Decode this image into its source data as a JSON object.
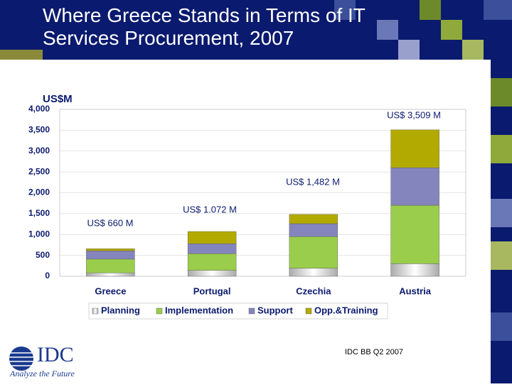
{
  "title": "Where Greece Stands in Terms of IT Services Procurement, 2007",
  "source": "IDC BB Q2 2007",
  "logo": {
    "name": "IDC",
    "tagline": "Analyze the Future"
  },
  "chart_data": {
    "type": "stacked_bar",
    "y_label": "US$M",
    "categories": [
      "Greece",
      "Portugal",
      "Czechia",
      "Austria"
    ],
    "series": [
      {
        "name": "Planning",
        "color": "#d8d8d8",
        "values": [
          80,
          140,
          190,
          300
        ]
      },
      {
        "name": "Implementation",
        "color": "#9acd4c",
        "values": [
          330,
          400,
          760,
          1400
        ]
      },
      {
        "name": "Support",
        "color": "#8585bd",
        "values": [
          200,
          240,
          310,
          900
        ]
      },
      {
        "name": "Opp.&Training",
        "color": "#b3aa00",
        "values": [
          50,
          292,
          222,
          909
        ]
      }
    ],
    "annotations": [
      "US$ 660 M",
      "US$ 1.072 M",
      "US$ 1,482 M",
      "US$ 3,509 M"
    ],
    "ylim": [
      0,
      4000
    ],
    "yticks": [
      0,
      500,
      {
        "value": 1000,
        "label": "1,000"
      },
      {
        "value": 1500,
        "label": "1,500"
      },
      {
        "value": 2000,
        "label": "2,000"
      },
      {
        "value": 2500,
        "label": "2,500"
      },
      {
        "value": 3000,
        "label": "3,000"
      },
      {
        "value": 3500,
        "label": "3,500"
      },
      {
        "value": 4000,
        "label": "4,000"
      }
    ],
    "legend": "bottom"
  }
}
